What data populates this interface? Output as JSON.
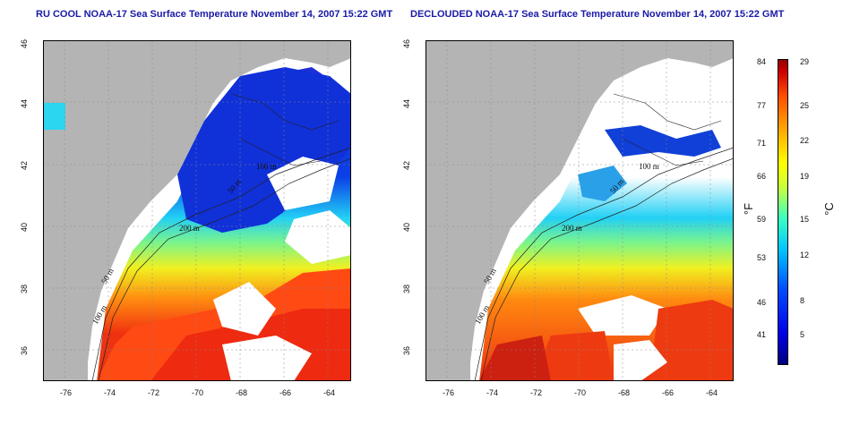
{
  "titles": {
    "left": "RU COOL NOAA-17 Sea Surface Temperature November 14, 2007 15:22 GMT",
    "right": "DECLOUDED NOAA-17 Sea Surface Temperature November 14, 2007 15:22 GMT"
  },
  "axes": {
    "x_ticks": [
      "-76",
      "-74",
      "-72",
      "-70",
      "-68",
      "-66",
      "-64"
    ],
    "y_ticks": [
      "46",
      "44",
      "42",
      "40",
      "38",
      "36"
    ],
    "xlim": [
      -77,
      -63
    ],
    "ylim": [
      35,
      46
    ]
  },
  "contours": {
    "labels": [
      "100 m",
      "50 m",
      "200 m",
      "50 m",
      "100 m"
    ]
  },
  "colorbar": {
    "fahrenheit_ticks": [
      "84",
      "77",
      "71",
      "66",
      "59",
      "53",
      "46",
      "41"
    ],
    "celsius_ticks": [
      "29",
      "25",
      "22",
      "19",
      "15",
      "12",
      "8",
      "5"
    ],
    "fahrenheit_unit": "°F",
    "celsius_unit": "°C",
    "colors": {
      "cold": "#00007f",
      "cool": "#0050ff",
      "mild": "#3cffc0",
      "warm": "#ffff00",
      "hot": "#ff5000",
      "hottest": "#990000",
      "land": "#b4b4b4",
      "clouds": "#ffffff"
    }
  }
}
